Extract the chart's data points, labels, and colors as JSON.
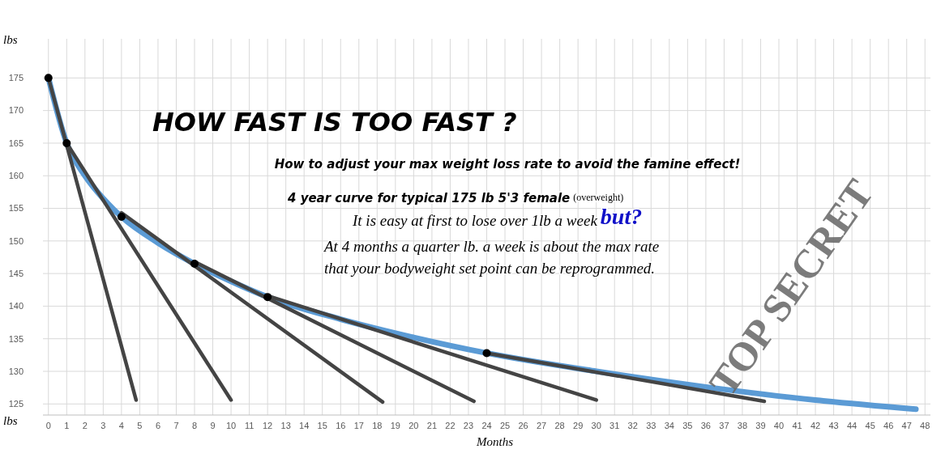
{
  "chart_data": {
    "type": "line",
    "title": "HOW FAST IS TOO FAST ?",
    "subtitle": "How to adjust your max weight loss rate to avoid the famine effect!",
    "xlabel": "Months",
    "ylabel": "lbs",
    "annotations": [
      "4 year curve for typical 175 lb 5'3 female",
      "(overweight)",
      "It is easy at first to lose over 1lb a week",
      "but?",
      "At 4 months a quarter lb. a week is about the max rate",
      "that  your bodyweight set point can be reprogrammed.",
      "TOP SECRET"
    ],
    "xlim": [
      -0.3,
      48.3
    ],
    "ylim": [
      123.3,
      181
    ],
    "xticks": [
      0,
      1,
      2,
      3,
      4,
      5,
      6,
      7,
      8,
      9,
      10,
      11,
      12,
      13,
      14,
      15,
      16,
      17,
      18,
      19,
      20,
      21,
      22,
      23,
      24,
      25,
      26,
      27,
      28,
      29,
      30,
      31,
      32,
      33,
      34,
      35,
      36,
      37,
      38,
      39,
      40,
      41,
      42,
      43,
      44,
      45,
      46,
      47,
      48
    ],
    "yticks": [
      125,
      130,
      135,
      140,
      145,
      150,
      155,
      160,
      165,
      170,
      175
    ],
    "grid": true,
    "series": [
      {
        "color": "#5b9bd5",
        "x": [
          0,
          1,
          2,
          3,
          4,
          6,
          8,
          10,
          12,
          16,
          20,
          24,
          30,
          36,
          42,
          47.5
        ],
        "values": [
          175,
          165,
          160,
          156.5,
          153.7,
          149.7,
          146.5,
          143.8,
          141.4,
          138,
          135.2,
          132.8,
          130,
          127.6,
          125.6,
          124.2
        ]
      },
      {
        "color": "#444444",
        "x": [
          0,
          4.8
        ],
        "values": [
          175,
          125.6
        ]
      },
      {
        "color": "#444444",
        "x": [
          1,
          10
        ],
        "values": [
          165,
          125.6
        ]
      },
      {
        "color": "#444444",
        "x": [
          4,
          18.3
        ],
        "values": [
          154.3,
          125.3
        ]
      },
      {
        "color": "#444444",
        "x": [
          8,
          23.3
        ],
        "values": [
          146.8,
          125.4
        ]
      },
      {
        "color": "#444444",
        "x": [
          12,
          30
        ],
        "values": [
          141.6,
          125.6
        ]
      },
      {
        "color": "#444444",
        "x": [
          24,
          39.2
        ],
        "values": [
          132.8,
          125.4
        ]
      },
      {
        "type": "scatter",
        "color": "#000000",
        "marker": "circle",
        "x": [
          0,
          1,
          4,
          8,
          12,
          24
        ],
        "values": [
          175,
          165,
          153.7,
          146.5,
          141.4,
          132.8
        ]
      }
    ]
  }
}
